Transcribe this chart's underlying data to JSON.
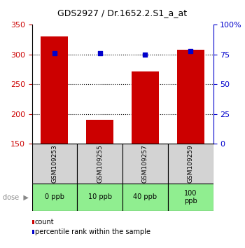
{
  "title": "GDS2927 / Dr.1652.2.S1_a_at",
  "samples": [
    "GSM109253",
    "GSM109255",
    "GSM109257",
    "GSM109259"
  ],
  "doses": [
    "0 ppb",
    "10 ppb",
    "40 ppb",
    "100\nppb"
  ],
  "counts": [
    330,
    190,
    272,
    308
  ],
  "percentiles": [
    76,
    76,
    75,
    78
  ],
  "ymin": 150,
  "ymax": 350,
  "yticks_left": [
    150,
    200,
    250,
    300,
    350
  ],
  "yticks_right": [
    0,
    25,
    50,
    75,
    100
  ],
  "bar_color": "#cc0000",
  "pct_color": "#0000cc",
  "dose_bg_color": "#90ee90",
  "sample_bg_color": "#d3d3d3",
  "legend_red_label": "count",
  "legend_blue_label": "percentile rank within the sample",
  "title_fontsize": 9,
  "axis_fontsize": 8,
  "sample_fontsize": 6.5,
  "dose_fontsize": 7,
  "legend_fontsize": 7
}
